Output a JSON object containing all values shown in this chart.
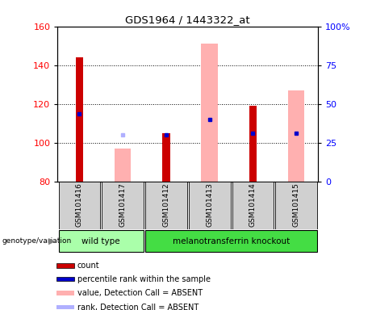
{
  "title": "GDS1964 / 1443322_at",
  "samples": [
    "GSM101416",
    "GSM101417",
    "GSM101412",
    "GSM101413",
    "GSM101414",
    "GSM101415"
  ],
  "ylim_left": [
    80,
    160
  ],
  "ylim_right": [
    0,
    100
  ],
  "yticks_left": [
    80,
    100,
    120,
    140,
    160
  ],
  "yticks_right": [
    0,
    25,
    50,
    75,
    100
  ],
  "ytick_labels_right": [
    "0",
    "25",
    "50",
    "75",
    "100%"
  ],
  "count_values": [
    144,
    null,
    105,
    null,
    119,
    null
  ],
  "absent_value_values": [
    null,
    97,
    null,
    151,
    null,
    127
  ],
  "percentile_rank_left": [
    115,
    null,
    104,
    112,
    105,
    105
  ],
  "absent_rank_left": [
    null,
    104,
    null,
    null,
    null,
    null
  ],
  "color_count": "#cc0000",
  "color_percentile": "#0000cc",
  "color_absent_value": "#ffb0b0",
  "color_absent_rank": "#b0b0ff",
  "color_wt": "#aaffaa",
  "color_mt": "#44dd44",
  "color_sample_bg": "#d0d0d0",
  "bar_bottom": 80,
  "legend_items": [
    {
      "color": "#cc0000",
      "label": "count"
    },
    {
      "color": "#0000cc",
      "label": "percentile rank within the sample"
    },
    {
      "color": "#ffb0b0",
      "label": "value, Detection Call = ABSENT"
    },
    {
      "color": "#b0b0ff",
      "label": "rank, Detection Call = ABSENT"
    }
  ]
}
